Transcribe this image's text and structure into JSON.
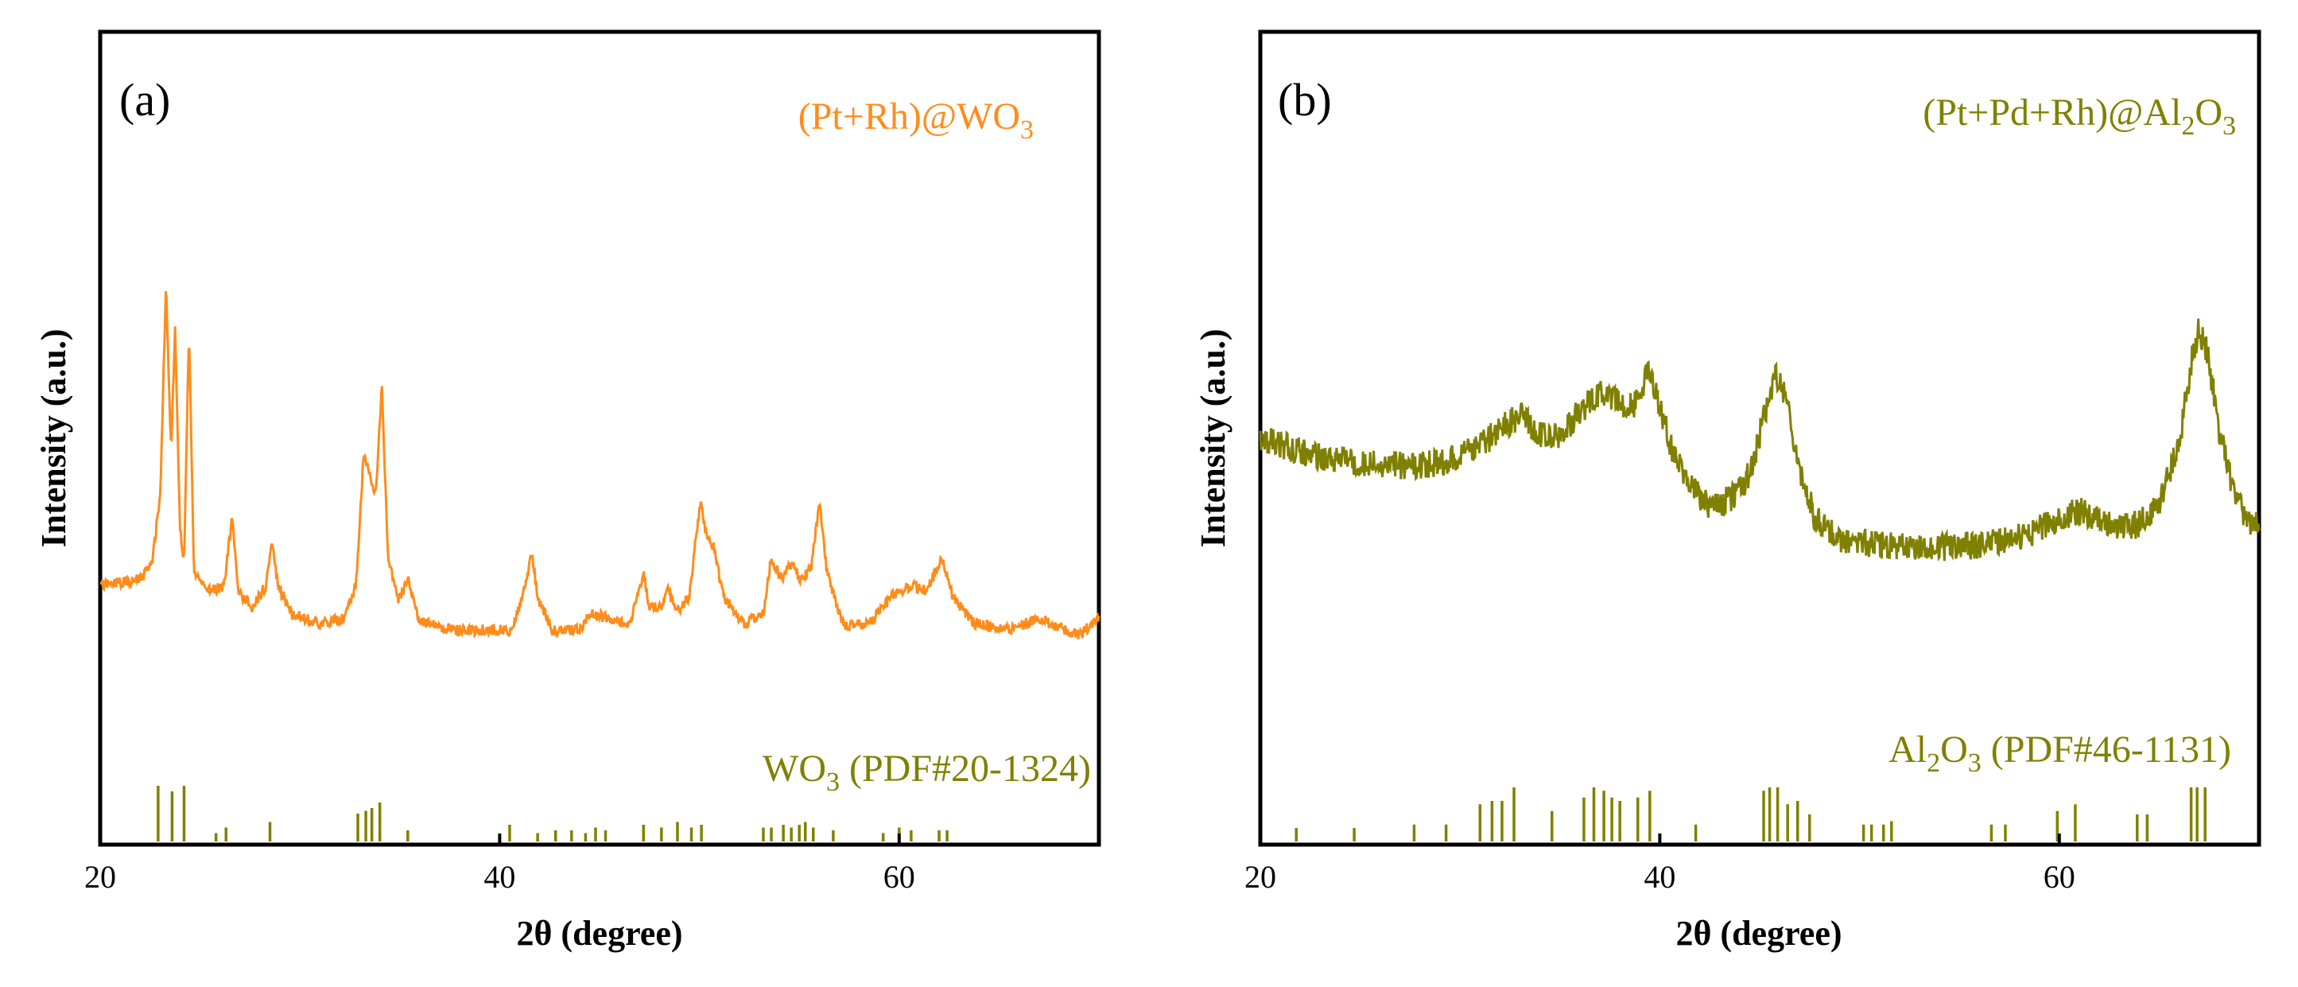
{
  "chart_data": [
    {
      "type": "line",
      "panel": "(a)",
      "series_label": "(Pt+Rh)@WO",
      "series_label_sub": "3",
      "series_color": "#ff8c1a",
      "ref_label": "WO",
      "ref_label_sub": "3",
      "ref_label_rest": " (PDF#20-1324)",
      "ref_color": "#808000",
      "xlabel": "2θ (degree)",
      "ylabel": "Intensity (a.u.)",
      "xlim": [
        20,
        70
      ],
      "ylim": [
        0,
        100
      ],
      "xticks": [
        20,
        40,
        60
      ],
      "xtick_labels": [
        "20",
        "40",
        "60"
      ],
      "baseline": [
        [
          20,
          32
        ],
        [
          22,
          33
        ],
        [
          22.6,
          36
        ],
        [
          23.0,
          48
        ],
        [
          23.3,
          86
        ],
        [
          23.55,
          56
        ],
        [
          23.75,
          78
        ],
        [
          24.0,
          42
        ],
        [
          24.2,
          36
        ],
        [
          24.45,
          78
        ],
        [
          24.7,
          34
        ],
        [
          25.5,
          31
        ],
        [
          26.2,
          32
        ],
        [
          26.6,
          44
        ],
        [
          26.9,
          31
        ],
        [
          27.6,
          28
        ],
        [
          28.3,
          32
        ],
        [
          28.6,
          40
        ],
        [
          28.9,
          32
        ],
        [
          29.6,
          27
        ],
        [
          31,
          25
        ],
        [
          32.2,
          26
        ],
        [
          32.8,
          32
        ],
        [
          33.2,
          56
        ],
        [
          33.5,
          52
        ],
        [
          33.8,
          48
        ],
        [
          34.1,
          68
        ],
        [
          34.4,
          38
        ],
        [
          34.9,
          29
        ],
        [
          35.4,
          33
        ],
        [
          35.9,
          26
        ],
        [
          37.5,
          24
        ],
        [
          39.5,
          24
        ],
        [
          40.6,
          24
        ],
        [
          41.3,
          32
        ],
        [
          41.6,
          38
        ],
        [
          41.9,
          30
        ],
        [
          42.6,
          24
        ],
        [
          44,
          24
        ],
        [
          44.5,
          27
        ],
        [
          45.5,
          26
        ],
        [
          46.5,
          25
        ],
        [
          47.2,
          34
        ],
        [
          47.5,
          28
        ],
        [
          48.1,
          28
        ],
        [
          48.4,
          32
        ],
        [
          48.8,
          27
        ],
        [
          49.5,
          30
        ],
        [
          49.8,
          40
        ],
        [
          50.05,
          47
        ],
        [
          50.35,
          41
        ],
        [
          50.7,
          39
        ],
        [
          51.2,
          30
        ],
        [
          52.2,
          25
        ],
        [
          53.2,
          27
        ],
        [
          53.6,
          37
        ],
        [
          54.1,
          33
        ],
        [
          54.6,
          36
        ],
        [
          55.1,
          33
        ],
        [
          55.6,
          35
        ],
        [
          56.0,
          47
        ],
        [
          56.4,
          34
        ],
        [
          57.2,
          25
        ],
        [
          58.5,
          25
        ],
        [
          59.6,
          30
        ],
        [
          60.6,
          32
        ],
        [
          61.4,
          31
        ],
        [
          62.1,
          37
        ],
        [
          62.7,
          30
        ],
        [
          63.8,
          25
        ],
        [
          65.5,
          24
        ],
        [
          67,
          26
        ],
        [
          67.7,
          25
        ],
        [
          69,
          23
        ],
        [
          70,
          26
        ]
      ],
      "references": [
        [
          22.9,
          10
        ],
        [
          23.6,
          9
        ],
        [
          24.2,
          10
        ],
        [
          25.8,
          1.5
        ],
        [
          26.3,
          2.5
        ],
        [
          28.5,
          3.5
        ],
        [
          32.9,
          5
        ],
        [
          33.3,
          5.5
        ],
        [
          33.6,
          6
        ],
        [
          34,
          7
        ],
        [
          35.4,
          2
        ],
        [
          40.5,
          3
        ],
        [
          41.9,
          1.5
        ],
        [
          42.8,
          2
        ],
        [
          43.6,
          2
        ],
        [
          44.3,
          1.5
        ],
        [
          44.8,
          2.5
        ],
        [
          45.3,
          2
        ],
        [
          47.2,
          3
        ],
        [
          48.1,
          2.5
        ],
        [
          48.9,
          3.5
        ],
        [
          49.6,
          2.5
        ],
        [
          50.1,
          3
        ],
        [
          53.2,
          2.5
        ],
        [
          53.6,
          2.5
        ],
        [
          54.2,
          3
        ],
        [
          54.6,
          2.5
        ],
        [
          55,
          3
        ],
        [
          55.3,
          3.5
        ],
        [
          55.7,
          2.5
        ],
        [
          56.7,
          2
        ],
        [
          59.2,
          1.5
        ],
        [
          60,
          2.5
        ],
        [
          60.6,
          2
        ],
        [
          62,
          2
        ],
        [
          62.4,
          2
        ]
      ]
    },
    {
      "type": "line",
      "panel": "(b)",
      "series_label": "(Pt+Pd+Rh)@Al",
      "series_label_sub": "2",
      "series_label_mid": "O",
      "series_label_sub2": "3",
      "series_color": "#808000",
      "ref_label": "Al",
      "ref_label_sub": "2",
      "ref_label_mid": "O",
      "ref_label_sub2": "3",
      "ref_label_rest": " (PDF#46-1131)",
      "ref_color": "#808000",
      "xlabel": "2θ (degree)",
      "ylabel": "Intensity (a.u.)",
      "xlim": [
        20,
        70
      ],
      "ylim": [
        0,
        100
      ],
      "xticks": [
        20,
        40,
        60
      ],
      "xtick_labels": [
        "20",
        "40",
        "60"
      ],
      "baseline": [
        [
          20,
          56
        ],
        [
          22,
          53
        ],
        [
          24,
          51
        ],
        [
          26,
          50
        ],
        [
          28,
          50
        ],
        [
          29.5,
          51
        ],
        [
          31,
          54
        ],
        [
          32,
          58
        ],
        [
          33,
          61
        ],
        [
          34,
          57
        ],
        [
          35,
          56
        ],
        [
          36,
          62
        ],
        [
          37,
          66
        ],
        [
          38,
          64
        ],
        [
          38.7,
          63
        ],
        [
          39.4,
          70
        ],
        [
          39.8,
          66
        ],
        [
          40.5,
          55
        ],
        [
          41.5,
          45
        ],
        [
          42.5,
          41
        ],
        [
          43.5,
          42
        ],
        [
          44.5,
          48
        ],
        [
          45.3,
          62
        ],
        [
          45.8,
          70
        ],
        [
          46.3,
          65
        ],
        [
          46.9,
          50
        ],
        [
          47.8,
          38
        ],
        [
          49,
          34
        ],
        [
          50,
          33
        ],
        [
          52,
          32
        ],
        [
          54,
          32
        ],
        [
          56,
          32
        ],
        [
          58,
          34
        ],
        [
          60,
          38
        ],
        [
          61,
          40
        ],
        [
          62,
          38
        ],
        [
          63,
          36
        ],
        [
          64,
          37
        ],
        [
          65,
          42
        ],
        [
          66,
          55
        ],
        [
          66.7,
          75
        ],
        [
          67.0,
          80
        ],
        [
          67.4,
          75
        ],
        [
          68,
          58
        ],
        [
          68.7,
          45
        ],
        [
          69.3,
          39
        ],
        [
          70,
          36
        ]
      ],
      "noise": [
        4,
        4,
        4,
        4,
        4,
        4,
        4,
        4,
        4,
        3,
        3,
        3,
        3,
        3,
        3,
        3,
        3,
        3,
        3,
        3,
        3,
        3,
        3,
        3,
        3,
        3,
        3,
        3,
        3,
        3,
        3,
        3,
        3,
        3,
        3,
        3,
        3,
        3,
        3,
        3,
        3,
        3,
        3,
        3,
        3,
        3,
        3
      ],
      "references": [
        [
          21.8,
          2
        ],
        [
          24.7,
          2
        ],
        [
          27.7,
          2.5
        ],
        [
          29.3,
          2.5
        ],
        [
          31,
          5.5
        ],
        [
          31.6,
          6
        ],
        [
          32.1,
          6
        ],
        [
          32.7,
          8
        ],
        [
          34.6,
          4.5
        ],
        [
          36.2,
          6.5
        ],
        [
          36.7,
          8
        ],
        [
          37.2,
          7.5
        ],
        [
          37.6,
          6.5
        ],
        [
          38,
          6
        ],
        [
          38.9,
          6.5
        ],
        [
          39.5,
          7.5
        ],
        [
          41.8,
          2.5
        ],
        [
          45.2,
          7.5
        ],
        [
          45.5,
          8
        ],
        [
          45.9,
          8
        ],
        [
          46.4,
          5.5
        ],
        [
          46.9,
          6
        ],
        [
          47.5,
          4
        ],
        [
          50.2,
          2.5
        ],
        [
          50.6,
          2.5
        ],
        [
          51.2,
          2.5
        ],
        [
          51.6,
          3
        ],
        [
          56.6,
          2.5
        ],
        [
          57.3,
          2.5
        ],
        [
          59.9,
          4.5
        ],
        [
          60.8,
          5.5
        ],
        [
          63.9,
          4
        ],
        [
          64.4,
          4
        ],
        [
          66.6,
          8
        ],
        [
          66.9,
          8
        ],
        [
          67.3,
          8
        ]
      ]
    }
  ]
}
